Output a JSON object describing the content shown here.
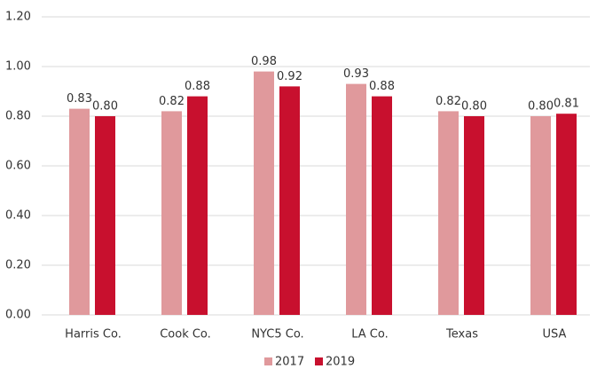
{
  "chart_data": {
    "type": "bar",
    "categories": [
      "Harris Co.",
      "Cook Co.",
      "NYC5 Co.",
      "LA Co.",
      "Texas",
      "USA"
    ],
    "series": [
      {
        "name": "2017",
        "color": "#e0999c",
        "values": [
          0.83,
          0.82,
          0.98,
          0.93,
          0.82,
          0.8
        ],
        "value_labels": [
          "0.83",
          "0.82",
          "0.98",
          "0.93",
          "0.82",
          "0.80"
        ]
      },
      {
        "name": "2019",
        "color": "#c8102e",
        "values": [
          0.8,
          0.88,
          0.92,
          0.88,
          0.8,
          0.81
        ],
        "value_labels": [
          "0.80",
          "0.88",
          "0.92",
          "0.88",
          "0.80",
          "0.81"
        ]
      }
    ],
    "ylim": [
      0,
      1.2
    ],
    "yticks": [
      {
        "value": 0,
        "label": "0.00"
      },
      {
        "value": 0.2,
        "label": "0.20"
      },
      {
        "value": 0.4,
        "label": "0.40"
      },
      {
        "value": 0.6,
        "label": "0.60"
      },
      {
        "value": 0.8,
        "label": "0.80"
      },
      {
        "value": 1.0,
        "label": "1.00"
      },
      {
        "value": 1.2,
        "label": "1.20"
      }
    ],
    "grid": true,
    "legend": "bottom"
  }
}
